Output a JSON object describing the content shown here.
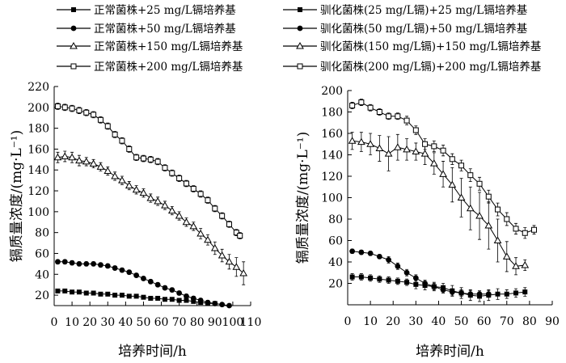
{
  "legend": [
    {
      "label": "正常菌株+25 mg/L镉培养基",
      "marker": "square-filled"
    },
    {
      "label": "驯化菌株(25 mg/L镉)+25 mg/L镉培养基",
      "marker": "square-filled"
    },
    {
      "label": "正常菌株+50 mg/L镉培养基",
      "marker": "circle-filled"
    },
    {
      "label": "驯化菌株(50 mg/L镉)+50 mg/L镉培养基",
      "marker": "circle-filled"
    },
    {
      "label": "正常菌株+150 mg/L镉培养基",
      "marker": "triangle-open"
    },
    {
      "label": "驯化菌株(150 mg/L镉)+150 mg/L镉培养基",
      "marker": "triangle-open"
    },
    {
      "label": "正常菌株+200 mg/L镉培养基",
      "marker": "square-open"
    },
    {
      "label": "驯化菌株(200 mg/L镉)+200 mg/L镉培养基",
      "marker": "square-open"
    }
  ],
  "chart_data": [
    {
      "type": "line",
      "xlabel": "培养时间/h",
      "ylabel": "镉质量浓度/(mg·L⁻¹)",
      "xlim": [
        0,
        110
      ],
      "ylim": [
        10,
        220
      ],
      "xticks": [
        "0",
        "10",
        "20",
        "30",
        "40",
        "50",
        "60",
        "70",
        "80",
        "90",
        "100",
        "110"
      ],
      "yticks": [
        "20",
        "40",
        "60",
        "80",
        "100",
        "120",
        "140",
        "160",
        "180",
        "200",
        "220"
      ],
      "series": [
        {
          "name": "正常菌株+25 mg/L镉培养基",
          "marker": "square-filled",
          "x": [
            2,
            6,
            10,
            14,
            18,
            22,
            26,
            30,
            34,
            38,
            42,
            46,
            50,
            54,
            58,
            62,
            66,
            70,
            74,
            78,
            82,
            86,
            90
          ],
          "y": [
            24,
            24,
            23,
            23,
            22,
            22,
            21,
            21,
            20,
            20,
            19,
            19,
            18,
            17,
            17,
            16,
            16,
            15,
            15,
            14,
            13,
            12,
            12
          ],
          "err": [
            1.5,
            1.5,
            1.5,
            1.5,
            1.5,
            1.5,
            1.5,
            1.5,
            1.5,
            1.5,
            1.5,
            1.5,
            1.5,
            1.5,
            1.5,
            1.5,
            1.5,
            1.5,
            1.5,
            1.5,
            1.5,
            1.5,
            1.5
          ]
        },
        {
          "name": "正常菌株+50 mg/L镉培养基",
          "marker": "circle-filled",
          "x": [
            2,
            6,
            10,
            14,
            18,
            22,
            26,
            30,
            34,
            38,
            42,
            46,
            50,
            54,
            58,
            62,
            66,
            70,
            74,
            78,
            82,
            86,
            90,
            94,
            98
          ],
          "y": [
            52,
            52,
            51,
            50,
            50,
            50,
            49,
            48,
            46,
            44,
            42,
            39,
            36,
            33,
            30,
            27,
            25,
            22,
            19,
            17,
            15,
            13,
            12,
            11,
            10
          ],
          "err": [
            2,
            2,
            2,
            2,
            2,
            2,
            2,
            2,
            2,
            2,
            2,
            2,
            2,
            2,
            2,
            2,
            2,
            2,
            2,
            2,
            2,
            2,
            1.5,
            1.5,
            1.5
          ]
        },
        {
          "name": "正常菌株+150 mg/L镉培养基",
          "marker": "triangle-open",
          "x": [
            2,
            6,
            10,
            14,
            18,
            22,
            26,
            30,
            34,
            38,
            42,
            46,
            50,
            54,
            58,
            62,
            66,
            70,
            74,
            78,
            82,
            86,
            90,
            94,
            98,
            102,
            106
          ],
          "y": [
            152,
            153,
            152,
            149,
            148,
            146,
            143,
            139,
            134,
            130,
            125,
            121,
            118,
            113,
            110,
            106,
            101,
            96,
            90,
            86,
            79,
            73,
            65,
            58,
            52,
            47,
            41
          ],
          "err": [
            5,
            5,
            5,
            5,
            4,
            4,
            4,
            4,
            4,
            4,
            4,
            4,
            4,
            4,
            4,
            4,
            4,
            4,
            4,
            4,
            5,
            5,
            6,
            6,
            7,
            9,
            11
          ]
        },
        {
          "name": "正常菌株+200 mg/L镉培养基",
          "marker": "square-open",
          "x": [
            2,
            6,
            10,
            14,
            18,
            22,
            26,
            30,
            34,
            38,
            42,
            46,
            50,
            54,
            58,
            62,
            66,
            70,
            74,
            78,
            82,
            86,
            90,
            94,
            98,
            102,
            104
          ],
          "y": [
            201,
            200,
            199,
            197,
            195,
            193,
            188,
            182,
            174,
            168,
            160,
            152,
            151,
            150,
            148,
            142,
            137,
            132,
            127,
            122,
            117,
            111,
            103,
            96,
            88,
            80,
            77
          ],
          "err": [
            3,
            3,
            3,
            3,
            3,
            3,
            3,
            3,
            3,
            3,
            3,
            3,
            3,
            3,
            3,
            3,
            3,
            3,
            3,
            3,
            3,
            3,
            3,
            3,
            3,
            3,
            3
          ]
        }
      ]
    },
    {
      "type": "line",
      "xlabel": "培养时间/h",
      "ylabel": "镉质量浓度/(mg·L⁻¹)",
      "xlim": [
        0,
        90
      ],
      "ylim": [
        0,
        200
      ],
      "xticks": [
        "0",
        "10",
        "20",
        "30",
        "40",
        "50",
        "60",
        "70",
        "80",
        "90"
      ],
      "yticks": [
        "20",
        "40",
        "60",
        "80",
        "100",
        "120",
        "140",
        "160",
        "180",
        "200"
      ],
      "series": [
        {
          "name": "驯化菌株(25 mg/L镉)+25 mg/L镉培养基",
          "marker": "square-filled",
          "x": [
            2,
            6,
            10,
            14,
            18,
            22,
            26,
            30,
            34,
            38,
            42,
            46,
            50,
            54,
            58,
            62,
            66,
            70,
            74,
            78
          ],
          "y": [
            26,
            26,
            25,
            24,
            23,
            22,
            21,
            19,
            18,
            17,
            16,
            13,
            11,
            9,
            8,
            9,
            10,
            10,
            11,
            12
          ],
          "err": [
            3,
            3,
            3,
            3,
            3,
            3,
            3,
            4,
            4,
            4,
            4,
            5,
            5,
            5,
            5,
            5,
            5,
            4,
            4,
            4
          ]
        },
        {
          "name": "驯化菌株(50 mg/L镉)+50 mg/L镉培养基",
          "marker": "circle-filled",
          "x": [
            2,
            6,
            10,
            14,
            18,
            22,
            26,
            30,
            34,
            38,
            42,
            46,
            50,
            54,
            58,
            62
          ],
          "y": [
            50,
            49,
            48,
            45,
            42,
            36,
            30,
            25,
            20,
            17,
            14,
            12,
            11,
            10,
            10,
            10
          ],
          "err": [
            2,
            2,
            2,
            2,
            3,
            3,
            3,
            3,
            3,
            3,
            3,
            3,
            3,
            3,
            3,
            3
          ]
        },
        {
          "name": "驯化菌株(150 mg/L镉)+150 mg/L镉培养基",
          "marker": "triangle-open",
          "x": [
            2,
            6,
            10,
            14,
            18,
            22,
            26,
            30,
            34,
            38,
            42,
            46,
            50,
            54,
            58,
            62,
            66,
            70,
            74,
            78
          ],
          "y": [
            153,
            152,
            150,
            146,
            141,
            147,
            145,
            143,
            141,
            132,
            122,
            112,
            100,
            90,
            83,
            74,
            60,
            45,
            36,
            37
          ],
          "err": [
            8,
            9,
            10,
            12,
            16,
            12,
            10,
            8,
            10,
            10,
            12,
            16,
            18,
            20,
            22,
            22,
            20,
            14,
            8,
            5
          ]
        },
        {
          "name": "驯化菌株(200 mg/L镉)+200 mg/L镉培养基",
          "marker": "square-open",
          "x": [
            2,
            6,
            10,
            14,
            18,
            22,
            26,
            30,
            34,
            38,
            42,
            46,
            50,
            54,
            58,
            62,
            66,
            70,
            74,
            78,
            82
          ],
          "y": [
            186,
            189,
            184,
            180,
            176,
            176,
            172,
            163,
            150,
            148,
            144,
            136,
            130,
            121,
            113,
            101,
            89,
            80,
            71,
            67,
            70
          ],
          "err": [
            3,
            3,
            3,
            3,
            3,
            3,
            4,
            4,
            5,
            5,
            5,
            5,
            5,
            6,
            6,
            6,
            6,
            6,
            5,
            5,
            4
          ]
        }
      ]
    }
  ]
}
